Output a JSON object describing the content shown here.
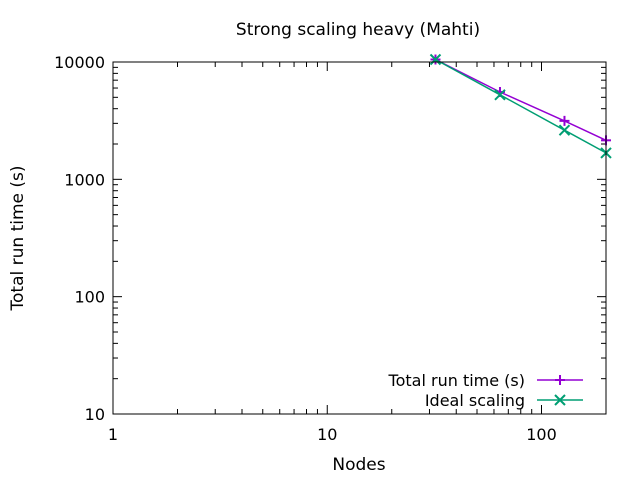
{
  "chart_data": {
    "type": "line",
    "title": "Strong scaling heavy (Mahti)",
    "xlabel": "Nodes",
    "ylabel": "Total run time (s)",
    "xscale": "log",
    "yscale": "log",
    "xlim": [
      1,
      200
    ],
    "ylim": [
      10,
      10000
    ],
    "xticks": [
      {
        "value": 1,
        "label": "1"
      },
      {
        "value": 10,
        "label": "10"
      },
      {
        "value": 100,
        "label": "100"
      }
    ],
    "yticks": [
      {
        "value": 10,
        "label": "10"
      },
      {
        "value": 100,
        "label": "100"
      },
      {
        "value": 1000,
        "label": "1000"
      },
      {
        "value": 10000,
        "label": "10000"
      }
    ],
    "grid": false,
    "legend_position": "bottom-right",
    "series": [
      {
        "name": "Total run time (s)",
        "color": "#9400d3",
        "marker": "plus",
        "x": [
          32,
          64,
          128,
          200
        ],
        "y": [
          10500,
          5550,
          3150,
          2150
        ]
      },
      {
        "name": "Ideal scaling",
        "color": "#009e73",
        "marker": "cross",
        "x": [
          32,
          64,
          128,
          200
        ],
        "y": [
          10500,
          5250,
          2625,
          1680
        ]
      }
    ]
  }
}
